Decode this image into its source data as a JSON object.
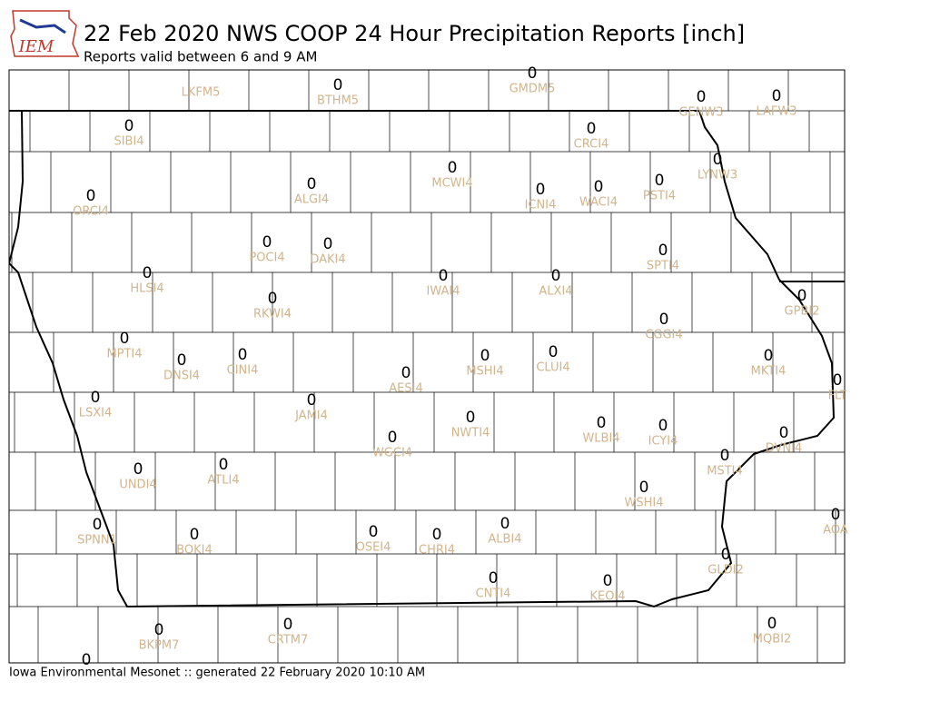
{
  "logo_text": "IEM",
  "header": {
    "title": "22 Feb 2020 NWS COOP 24 Hour Precipitation Reports [inch]",
    "subtitle": "Reports valid between 6 and 9 AM"
  },
  "footer": "Iowa Environmental Mesonet :: generated 22 February 2020 10:10 AM",
  "stations": [
    {
      "id": "LKFM5"
    },
    {
      "id": "BTHM5",
      "value": 0
    },
    {
      "id": "GMDM5",
      "value": 0
    },
    {
      "id": "GENW3",
      "value": 0
    },
    {
      "id": "LAFW3",
      "value": 0
    },
    {
      "id": "SIBI4",
      "value": 0
    },
    {
      "id": "CRCI4",
      "value": 0
    },
    {
      "id": "LYNW3",
      "value": 0
    },
    {
      "id": "ORCI4",
      "value": 0
    },
    {
      "id": "ALGI4",
      "value": 0
    },
    {
      "id": "MCWI4",
      "value": 0
    },
    {
      "id": "ICNI4",
      "value": 0
    },
    {
      "id": "WACI4",
      "value": 0
    },
    {
      "id": "PSTI4",
      "value": 0
    },
    {
      "id": "POCI4",
      "value": 0
    },
    {
      "id": "DAKI4",
      "value": 0
    },
    {
      "id": "SPTI4",
      "value": 0
    },
    {
      "id": "HLSI4",
      "value": 0
    },
    {
      "id": "IWAI4",
      "value": 0
    },
    {
      "id": "ALXI4",
      "value": 0
    },
    {
      "id": "GPBI2",
      "value": 0
    },
    {
      "id": "RKWI4",
      "value": 0
    },
    {
      "id": "CGGI4",
      "value": 0
    },
    {
      "id": "MPTI4",
      "value": 0
    },
    {
      "id": "DNSI4",
      "value": 0
    },
    {
      "id": "CINI4",
      "value": 0
    },
    {
      "id": "MSHI4",
      "value": 0
    },
    {
      "id": "CLUI4",
      "value": 0
    },
    {
      "id": "MKTI4",
      "value": 0
    },
    {
      "id": "AESI4",
      "value": 0
    },
    {
      "id": "FLT",
      "value": 0
    },
    {
      "id": "LSXI4",
      "value": 0
    },
    {
      "id": "JAMI4",
      "value": 0
    },
    {
      "id": "NWTI4",
      "value": 0
    },
    {
      "id": "WLBI4",
      "value": 0
    },
    {
      "id": "ICYI4",
      "value": 0
    },
    {
      "id": "WGCI4",
      "value": 0
    },
    {
      "id": "DVNI4",
      "value": 0
    },
    {
      "id": "MSTI4",
      "value": 0
    },
    {
      "id": "ATLI4",
      "value": 0
    },
    {
      "id": "UNDI4",
      "value": 0
    },
    {
      "id": "WSHI4",
      "value": 0
    },
    {
      "id": "AOA",
      "value": 0
    },
    {
      "id": "SPNN1",
      "value": 0
    },
    {
      "id": "OSEI4",
      "value": 0
    },
    {
      "id": "CHRI4",
      "value": 0
    },
    {
      "id": "ALBI4",
      "value": 0
    },
    {
      "id": "BOKI4",
      "value": 0
    },
    {
      "id": "GLDI2",
      "value": 0
    },
    {
      "id": "CNTI4",
      "value": 0
    },
    {
      "id": "KEOI4",
      "value": 0
    },
    {
      "id": "BKPM7",
      "value": 0
    },
    {
      "id": "CRTM7",
      "value": 0
    },
    {
      "id": "MQBI2",
      "value": 0
    },
    {
      "value": 0
    }
  ]
}
